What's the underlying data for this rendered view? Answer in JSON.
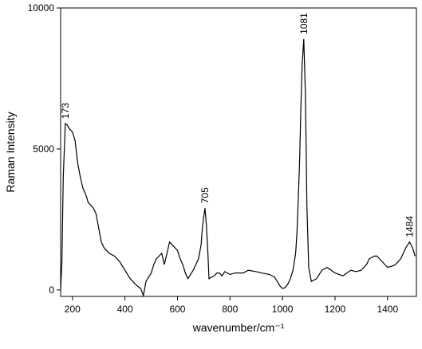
{
  "chart_data": {
    "type": "line",
    "xlabel": "wavenumber/cm⁻¹",
    "ylabel": "Raman Intensity",
    "x": [
      155,
      160,
      165,
      173,
      180,
      190,
      200,
      210,
      220,
      230,
      240,
      250,
      260,
      270,
      280,
      290,
      300,
      310,
      320,
      330,
      340,
      350,
      360,
      370,
      380,
      390,
      400,
      410,
      420,
      430,
      440,
      450,
      460,
      470,
      480,
      490,
      500,
      510,
      520,
      530,
      540,
      550,
      560,
      570,
      580,
      590,
      600,
      610,
      620,
      630,
      640,
      650,
      660,
      670,
      680,
      690,
      695,
      700,
      705,
      710,
      715,
      720,
      730,
      740,
      750,
      760,
      770,
      780,
      800,
      820,
      850,
      870,
      900,
      920,
      950,
      970,
      980,
      990,
      1000,
      1010,
      1020,
      1030,
      1040,
      1050,
      1055,
      1060,
      1065,
      1070,
      1075,
      1081,
      1087,
      1090,
      1093,
      1100,
      1110,
      1120,
      1130,
      1140,
      1150,
      1170,
      1200,
      1230,
      1260,
      1280,
      1300,
      1320,
      1330,
      1350,
      1360,
      1380,
      1400,
      1420,
      1430,
      1450,
      1460,
      1470,
      1484,
      1495,
      1505
    ],
    "values": [
      0,
      1000,
      4000,
      5900,
      5850,
      5700,
      5600,
      5300,
      4500,
      4000,
      3600,
      3400,
      3100,
      3000,
      2900,
      2700,
      2200,
      1700,
      1500,
      1400,
      1300,
      1250,
      1200,
      1100,
      1000,
      850,
      700,
      550,
      400,
      300,
      200,
      120,
      50,
      -200,
      300,
      450,
      600,
      900,
      1100,
      1200,
      1300,
      900,
      1300,
      1700,
      1600,
      1500,
      1400,
      1100,
      900,
      600,
      400,
      550,
      700,
      900,
      1100,
      1600,
      2200,
      2600,
      2900,
      2300,
      1500,
      400,
      450,
      500,
      600,
      600,
      500,
      650,
      550,
      600,
      600,
      700,
      650,
      600,
      550,
      450,
      300,
      150,
      50,
      80,
      200,
      400,
      700,
      1300,
      2000,
      3200,
      4500,
      6500,
      8000,
      8900,
      7000,
      5000,
      3000,
      800,
      300,
      350,
      400,
      550,
      700,
      800,
      600,
      500,
      700,
      650,
      700,
      900,
      1100,
      1200,
      1200,
      1000,
      800,
      850,
      900,
      1100,
      1300,
      1500,
      1700,
      1500,
      1200
    ],
    "color": "#000000",
    "xlim": [
      155,
      1510
    ],
    "ylim": [
      -230,
      10000
    ],
    "xticks": [
      200,
      400,
      600,
      800,
      1000,
      1200,
      1400
    ],
    "yticks": [
      0,
      5000,
      10000
    ],
    "annotations": [
      {
        "label": "173",
        "x": 173,
        "y": 5900
      },
      {
        "label": "705",
        "x": 705,
        "y": 2900
      },
      {
        "label": "1081",
        "x": 1081,
        "y": 8900
      },
      {
        "label": "1484",
        "x": 1484,
        "y": 1700
      }
    ]
  }
}
